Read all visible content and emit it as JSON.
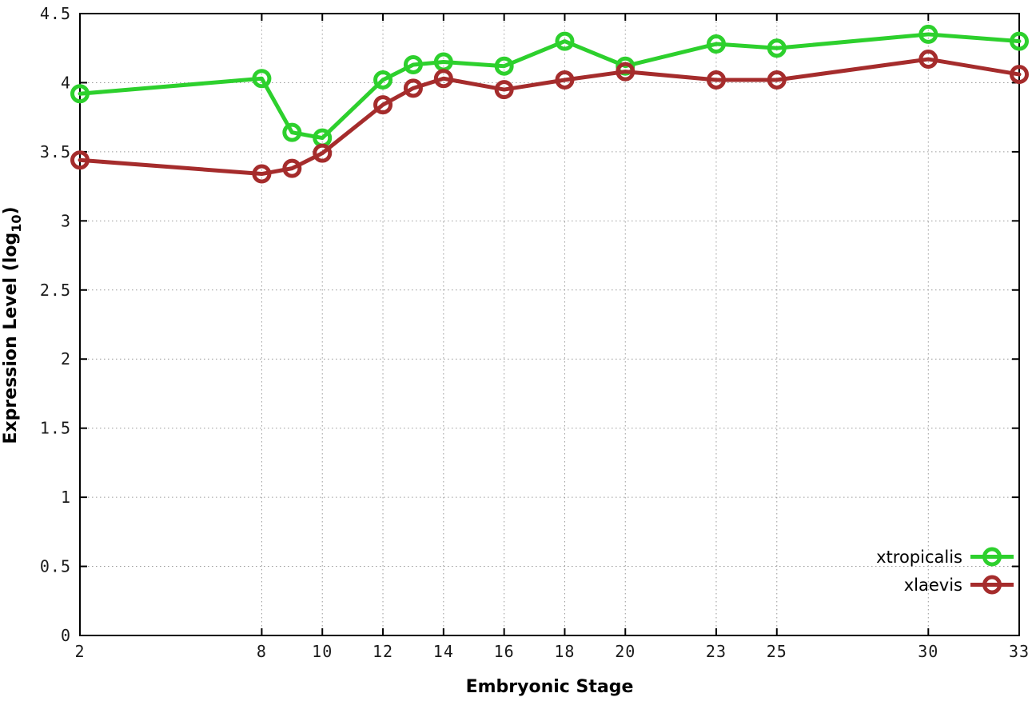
{
  "chart_data": {
    "type": "line",
    "title": "",
    "xlabel": "Embryonic Stage",
    "ylabel": "Expression Level (log10)",
    "ylabel_main": "Expression Level (log",
    "ylabel_sub": "10",
    "ylabel_end": ")",
    "x": [
      2,
      8,
      9,
      10,
      12,
      13,
      14,
      16,
      18,
      20,
      23,
      25,
      30,
      33
    ],
    "x_tick_labels": [
      "2",
      "8",
      "10",
      "12",
      "14",
      "16",
      "18",
      "20",
      "23",
      "25",
      "30",
      "33"
    ],
    "y_tick_labels": [
      "0",
      "0.5",
      "1",
      "1.5",
      "2",
      "2.5",
      "3",
      "3.5",
      "4",
      "4.5"
    ],
    "xlim": [
      2,
      33
    ],
    "ylim": [
      0,
      4.5
    ],
    "grid": true,
    "legend_position": "bottom-right",
    "series": [
      {
        "name": "xtropicalis",
        "color": "#2dd02d",
        "values": [
          3.92,
          4.03,
          3.64,
          3.6,
          4.02,
          4.13,
          4.15,
          4.12,
          4.3,
          4.12,
          4.28,
          4.25,
          4.35,
          4.3
        ]
      },
      {
        "name": "xlaevis",
        "color": "#a52c2c",
        "values": [
          3.44,
          3.34,
          3.38,
          3.49,
          3.84,
          3.96,
          4.03,
          3.95,
          4.02,
          4.08,
          4.02,
          4.02,
          4.17,
          4.06
        ]
      }
    ],
    "style": {
      "border_color": "#000000",
      "grid_color": "#9a9a9a",
      "tick_text_color": "#1a1a1a",
      "background": "#ffffff"
    }
  }
}
